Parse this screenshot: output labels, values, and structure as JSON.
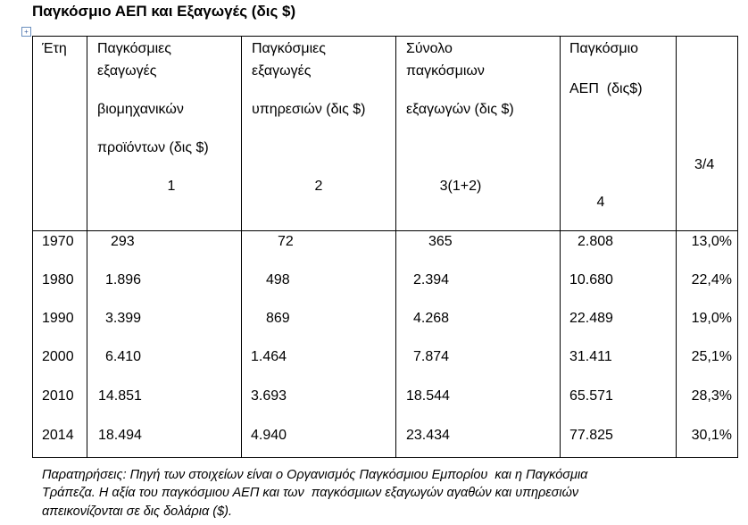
{
  "title": "Παγκόσμιο ΑΕΠ και Εξαγωγές (δις $)",
  "table": {
    "header": [
      [
        "Έτη"
      ],
      [
        "Παγκόσμιες",
        "εξαγωγές",
        "βιομηχανικών",
        "προϊόντων (δις $)",
        "1"
      ],
      [
        "Παγκόσμιες",
        "εξαγωγές",
        "υπηρεσιών (δις $)",
        "2"
      ],
      [
        "Σύνολο",
        "παγκόσμιων",
        "εξαγωγών (δις $)",
        "3(1+2)"
      ],
      [
        "Παγκόσμιο",
        "ΑΕΠ  (δις$)",
        "4"
      ],
      [
        "3/4"
      ]
    ],
    "rows": [
      [
        "1970",
        "293",
        "72",
        "365",
        "2.808",
        "13,0%"
      ],
      [
        "1980",
        "1.896",
        "498",
        "2.394",
        "10.680",
        "22,4%"
      ],
      [
        "1990",
        "3.399",
        "869",
        "4.268",
        "22.489",
        "19,0%"
      ],
      [
        "2000",
        "6.410",
        "1.464",
        "7.874",
        "31.411",
        "25,1%"
      ],
      [
        "2010",
        "14.851",
        "3.693",
        "18.544",
        "65.571",
        "28,3%"
      ],
      [
        "2014",
        "18.494",
        "4.940",
        "23.434",
        "77.825",
        "30,1%"
      ]
    ]
  },
  "note": [
    "Παρατηρήσεις: Πηγή των στοιχείων είναι ο Οργανισμός Παγκόσμιου Εμπορίου  και η Παγκόσμια",
    "Τράπεζα. Η αξία του παγκόσμιου ΑΕΠ και των  παγκόσμιων εξαγωγών αγαθών και υπηρεσιών",
    "απεικονίζονται σε δις δολάρια ($)."
  ]
}
